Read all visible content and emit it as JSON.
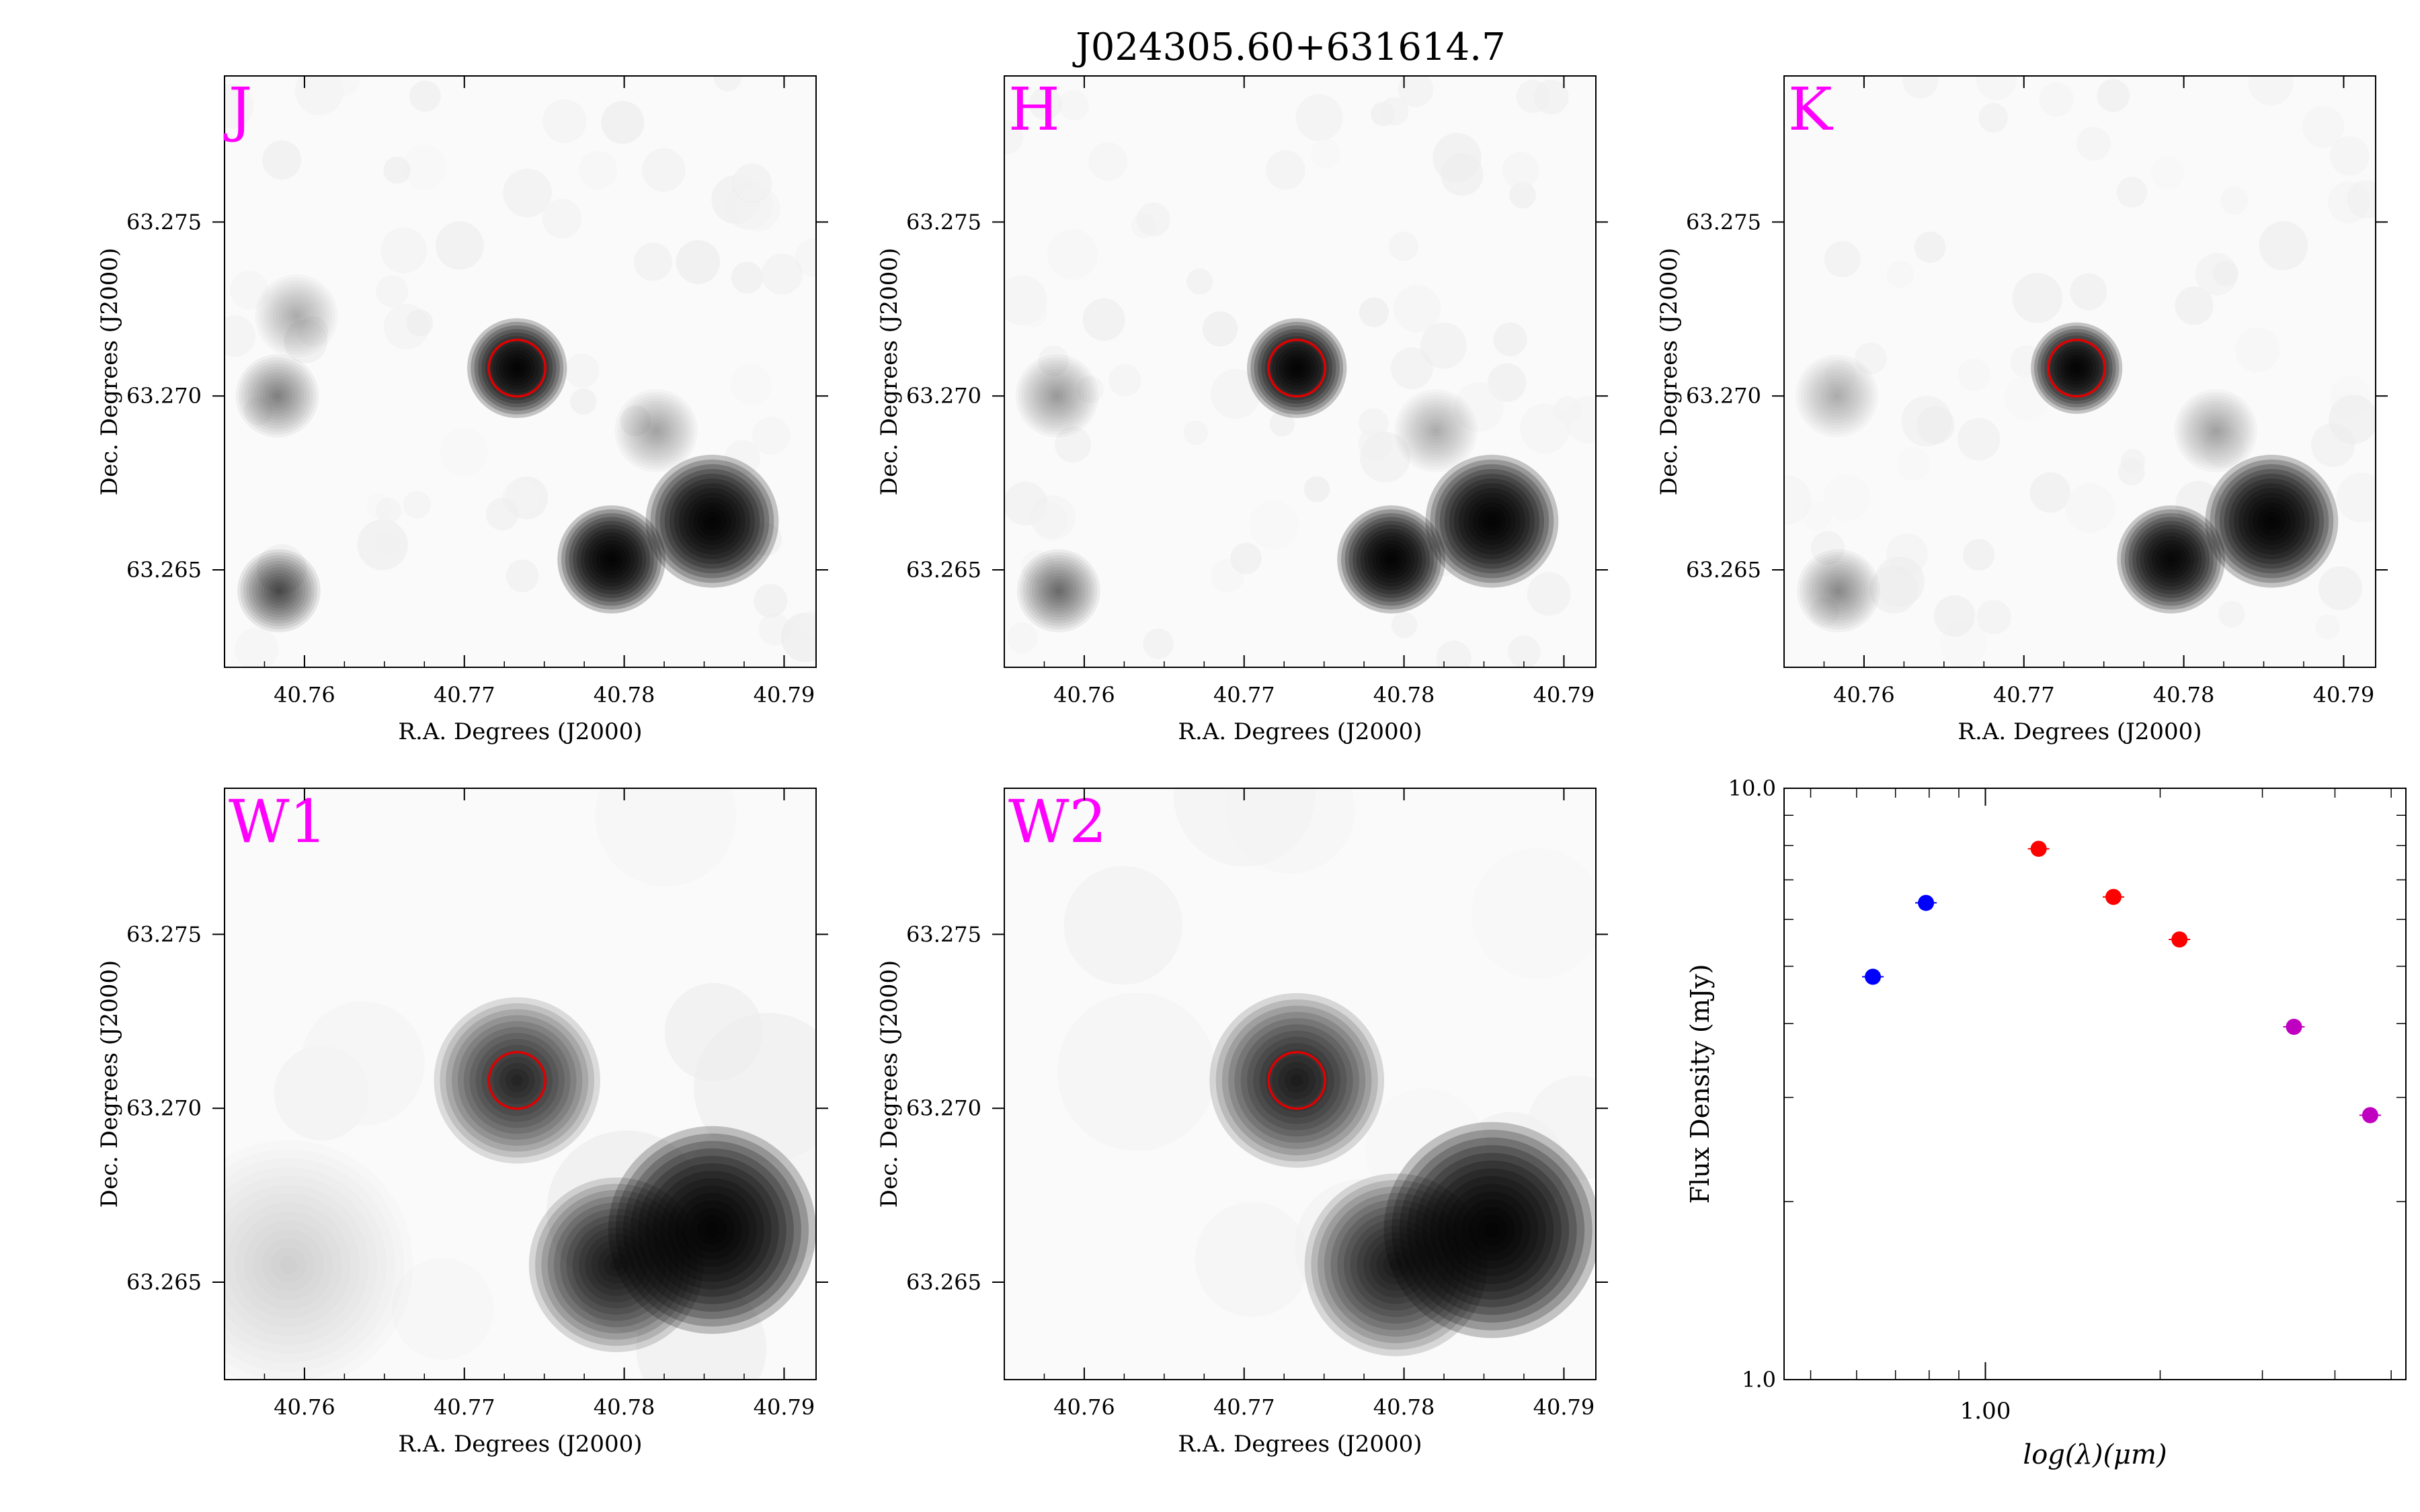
{
  "title": "J024305.60+631614.7",
  "colors": {
    "band_label": "#ff00ff",
    "target_circle": "#e00000",
    "sed_blue": "#0000ff",
    "sed_red": "#ff0000",
    "sed_magenta": "#c000c0"
  },
  "image_panels": [
    {
      "band": "J",
      "xlabel": "R.A. Degrees (J2000)",
      "ylabel": "Dec. Degrees (J2000)",
      "xticks": [
        "40.76",
        "40.77",
        "40.78",
        "40.79"
      ],
      "yticks": [
        "63.265",
        "63.270",
        "63.275"
      ],
      "sources": [
        {
          "ra": 40.7733,
          "dec": 63.2708,
          "sigma": 0.0012,
          "peak": 1.0
        },
        {
          "ra": 40.7792,
          "dec": 63.2653,
          "sigma": 0.0013,
          "peak": 1.0
        },
        {
          "ra": 40.7855,
          "dec": 63.2664,
          "sigma": 0.0016,
          "peak": 1.0
        },
        {
          "ra": 40.7583,
          "dec": 63.27,
          "sigma": 0.001,
          "peak": 0.2
        },
        {
          "ra": 40.7584,
          "dec": 63.2644,
          "sigma": 0.001,
          "peak": 0.35
        },
        {
          "ra": 40.7595,
          "dec": 63.2723,
          "sigma": 0.001,
          "peak": 0.1
        },
        {
          "ra": 40.782,
          "dec": 63.269,
          "sigma": 0.001,
          "peak": 0.12
        }
      ]
    },
    {
      "band": "H",
      "xlabel": "R.A. Degrees (J2000)",
      "ylabel": "Dec. Degrees (J2000)",
      "xticks": [
        "40.76",
        "40.77",
        "40.78",
        "40.79"
      ],
      "yticks": [
        "63.265",
        "63.270",
        "63.275"
      ],
      "sources": [
        {
          "ra": 40.7733,
          "dec": 63.2708,
          "sigma": 0.0012,
          "peak": 1.0
        },
        {
          "ra": 40.7792,
          "dec": 63.2653,
          "sigma": 0.0013,
          "peak": 1.0
        },
        {
          "ra": 40.7855,
          "dec": 63.2664,
          "sigma": 0.0016,
          "peak": 1.0
        },
        {
          "ra": 40.7583,
          "dec": 63.27,
          "sigma": 0.001,
          "peak": 0.15
        },
        {
          "ra": 40.7584,
          "dec": 63.2644,
          "sigma": 0.001,
          "peak": 0.25
        },
        {
          "ra": 40.782,
          "dec": 63.269,
          "sigma": 0.001,
          "peak": 0.1
        }
      ]
    },
    {
      "band": "K",
      "xlabel": "R.A. Degrees (J2000)",
      "ylabel": "Dec. Degrees (J2000)",
      "xticks": [
        "40.76",
        "40.77",
        "40.78",
        "40.79"
      ],
      "yticks": [
        "63.265",
        "63.270",
        "63.275"
      ],
      "sources": [
        {
          "ra": 40.7733,
          "dec": 63.2708,
          "sigma": 0.0011,
          "peak": 1.0
        },
        {
          "ra": 40.7792,
          "dec": 63.2653,
          "sigma": 0.0013,
          "peak": 0.95
        },
        {
          "ra": 40.7855,
          "dec": 63.2664,
          "sigma": 0.0016,
          "peak": 1.0
        },
        {
          "ra": 40.7583,
          "dec": 63.27,
          "sigma": 0.001,
          "peak": 0.1
        },
        {
          "ra": 40.7584,
          "dec": 63.2644,
          "sigma": 0.001,
          "peak": 0.18
        },
        {
          "ra": 40.782,
          "dec": 63.269,
          "sigma": 0.001,
          "peak": 0.12
        }
      ]
    },
    {
      "band": "W1",
      "xlabel": "R.A. Degrees (J2000)",
      "ylabel": "Dec. Degrees (J2000)",
      "xticks": [
        "40.76",
        "40.77",
        "40.78",
        "40.79"
      ],
      "yticks": [
        "63.265",
        "63.270",
        "63.275"
      ],
      "sources": [
        {
          "ra": 40.7733,
          "dec": 63.2708,
          "sigma": 0.002,
          "peak": 0.55
        },
        {
          "ra": 40.7795,
          "dec": 63.2655,
          "sigma": 0.0021,
          "peak": 0.65
        },
        {
          "ra": 40.7855,
          "dec": 63.2665,
          "sigma": 0.0025,
          "peak": 1.0
        },
        {
          "ra": 40.759,
          "dec": 63.2655,
          "sigma": 0.003,
          "peak": 0.05
        }
      ]
    },
    {
      "band": "W2",
      "xlabel": "R.A. Degrees (J2000)",
      "ylabel": "Dec. Degrees (J2000)",
      "xticks": [
        "40.76",
        "40.77",
        "40.78",
        "40.79"
      ],
      "yticks": [
        "63.265",
        "63.270",
        "63.275"
      ],
      "sources": [
        {
          "ra": 40.7733,
          "dec": 63.2708,
          "sigma": 0.0021,
          "peak": 0.62
        },
        {
          "ra": 40.7795,
          "dec": 63.2655,
          "sigma": 0.0022,
          "peak": 0.62
        },
        {
          "ra": 40.7855,
          "dec": 63.2665,
          "sigma": 0.0026,
          "peak": 1.0
        }
      ]
    }
  ],
  "chart_data": {
    "type": "scatter",
    "xlabel": "log(λ)(μm)",
    "ylabel": "Flux Density (mJy)",
    "xscale": "log",
    "yscale": "log",
    "xlim": [
      0.45,
      5.3
    ],
    "ylim": [
      1.0,
      10.0
    ],
    "xtick_labels": [
      "1.00"
    ],
    "ytick_labels": [
      "1.0",
      "10.0"
    ],
    "series": [
      {
        "color": "#0000ff",
        "x": [
          0.64,
          0.79
        ],
        "y": [
          4.8,
          6.4
        ]
      },
      {
        "color": "#ff0000",
        "x": [
          1.235,
          1.662,
          2.159
        ],
        "y": [
          7.9,
          6.55,
          5.55
        ]
      },
      {
        "color": "#c000c0",
        "x": [
          3.4,
          4.6
        ],
        "y": [
          3.95,
          2.8
        ]
      }
    ]
  }
}
